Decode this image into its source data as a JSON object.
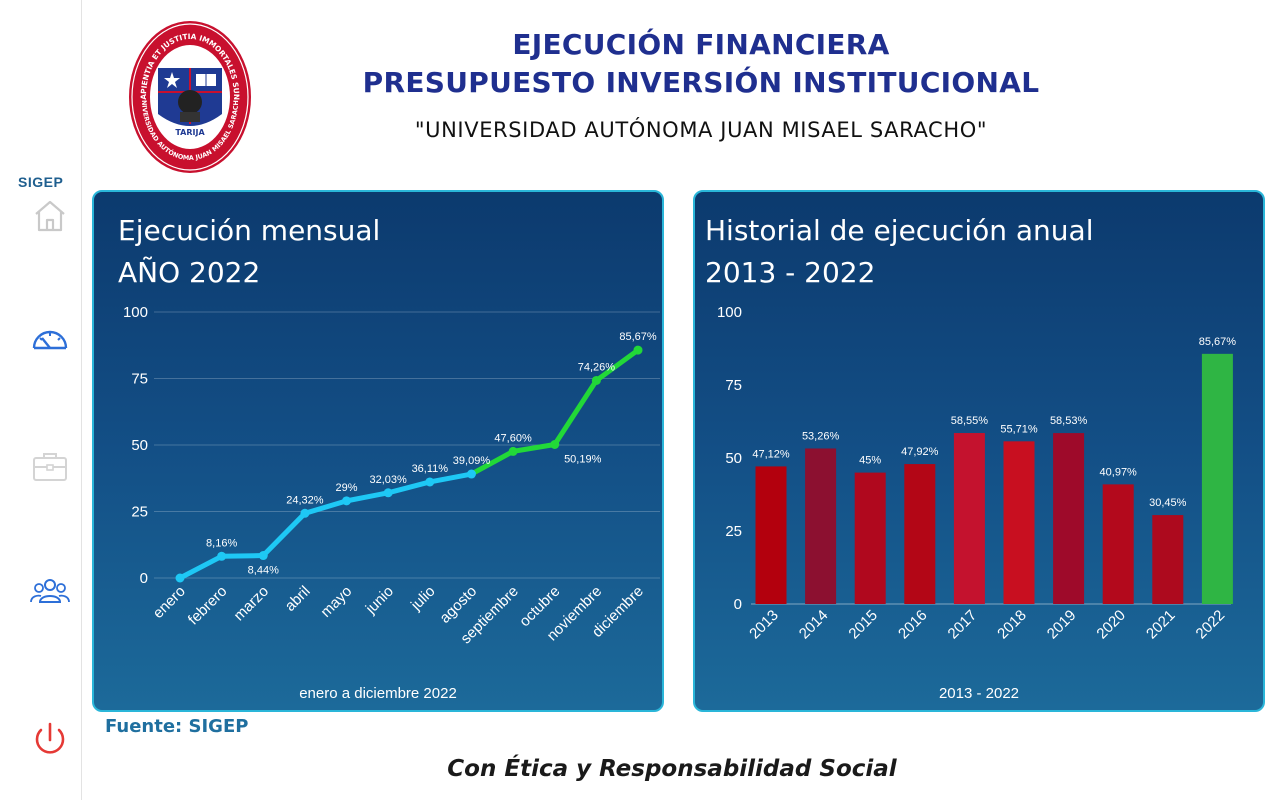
{
  "sidebar": {
    "brand": "SIGEP",
    "items": [
      {
        "icon": "home-icon"
      },
      {
        "icon": "dashboard-gauge-icon"
      },
      {
        "icon": "briefcase-icon"
      },
      {
        "icon": "users-icon"
      },
      {
        "icon": "power-icon"
      }
    ]
  },
  "logo": {
    "ring_text_top": "SAPIENTIA ET JUSTITIA IMMORTALES SUNT",
    "ring_text_bottom": "UNIVERSIDAD AUTÓNOMA JUAN MISAEL SARACHO",
    "city": "TARIJA",
    "colors": {
      "ring": "#c8102e",
      "inner": "#ffffff",
      "shield": "#1f3a93"
    }
  },
  "header": {
    "title_line1": "EJECUCIÓN FINANCIERA",
    "title_line2": "PRESUPUESTO INVERSIÓN INSTITUCIONAL",
    "subtitle": "\"UNIVERSIDAD AUTÓNOMA JUAN MISAEL SARACHO\""
  },
  "chart_data": [
    {
      "type": "line",
      "title_line1": "Ejecución mensual",
      "title_line2": "AÑO 2022",
      "footer": "enero a diciembre 2022",
      "categories": [
        "enero",
        "febrero",
        "marzo",
        "abril",
        "mayo",
        "junio",
        "julio",
        "agosto",
        "septiembre",
        "octubre",
        "noviembre",
        "diciembre"
      ],
      "values": [
        0,
        8.16,
        8.44,
        24.32,
        29,
        32.03,
        36.11,
        39.09,
        47.6,
        50.19,
        74.26,
        85.67
      ],
      "labels": [
        "",
        "8,16%",
        "8,44%",
        "24,32%",
        "29%",
        "32,03%",
        "36,11%",
        "39,09%",
        "47,60%",
        "50,19%",
        "74,26%",
        "85,67%"
      ],
      "yticks": [
        "0",
        "25",
        "50",
        "75",
        "100"
      ],
      "ylim": [
        0,
        100
      ],
      "grid": true,
      "colors": {
        "first_segment": "#1ec8f5",
        "second_segment": "#22d838"
      },
      "color_switch_index": 7
    },
    {
      "type": "bar",
      "title_line1": "Historial de ejecución anual",
      "title_line2": "2013 - 2022",
      "footer": "2013 - 2022",
      "categories": [
        "2013",
        "2014",
        "2015",
        "2016",
        "2017",
        "2018",
        "2019",
        "2020",
        "2021",
        "2022"
      ],
      "values": [
        47.12,
        53.26,
        45,
        47.92,
        58.55,
        55.71,
        58.53,
        40.97,
        30.45,
        85.67
      ],
      "labels": [
        "47,12%",
        "53,26%",
        "45%",
        "47,92%",
        "58,55%",
        "55,71%",
        "58,53%",
        "40,97%",
        "30,45%",
        "85,67%"
      ],
      "yticks": [
        "0",
        "25",
        "50",
        "75",
        "100"
      ],
      "ylim": [
        0,
        100
      ],
      "grid": true,
      "colors": [
        "#b3000d",
        "#8c1030",
        "#b0081e",
        "#b30616",
        "#c4122e",
        "#c80f20",
        "#9e0a2a",
        "#b3091c",
        "#ad0a1e",
        "#2fb544"
      ]
    }
  ],
  "source": "Fuente: SIGEP",
  "motto": "Con Ética y Responsabilidad Social"
}
